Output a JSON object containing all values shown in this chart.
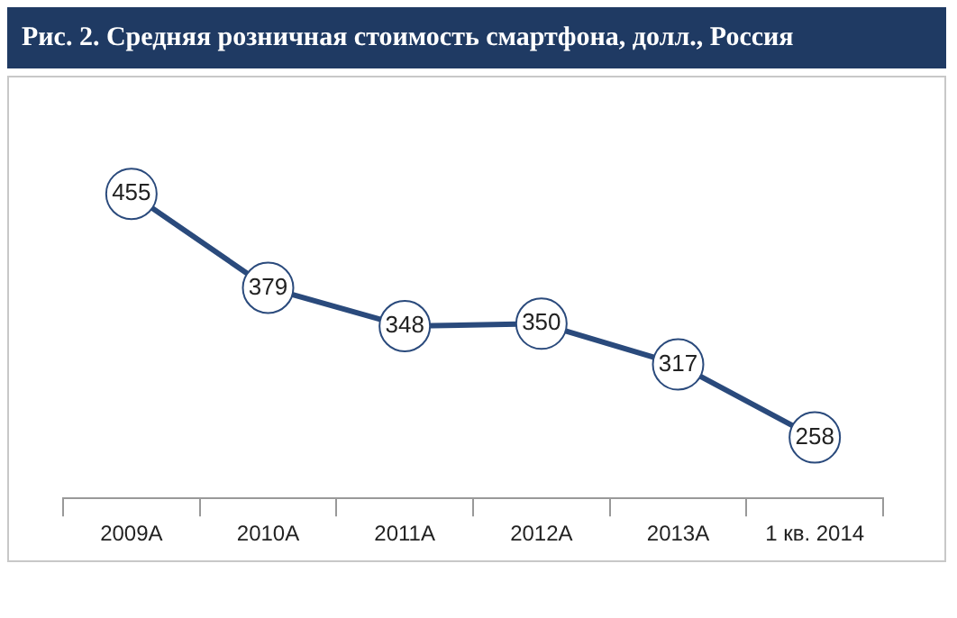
{
  "chart_data": {
    "type": "line",
    "title": "Рис. 2. Средняя розничная стоимость смартфона, долл., Россия",
    "categories": [
      "2009A",
      "2010A",
      "2011A",
      "2012A",
      "2013A",
      "1 кв. 2014"
    ],
    "series": [
      {
        "color": "#2a4a7c",
        "values": [
          455,
          379,
          348,
          350,
          317,
          258
        ]
      }
    ],
    "data_labels": true,
    "marker": "circle",
    "grid": false,
    "legend": false
  }
}
